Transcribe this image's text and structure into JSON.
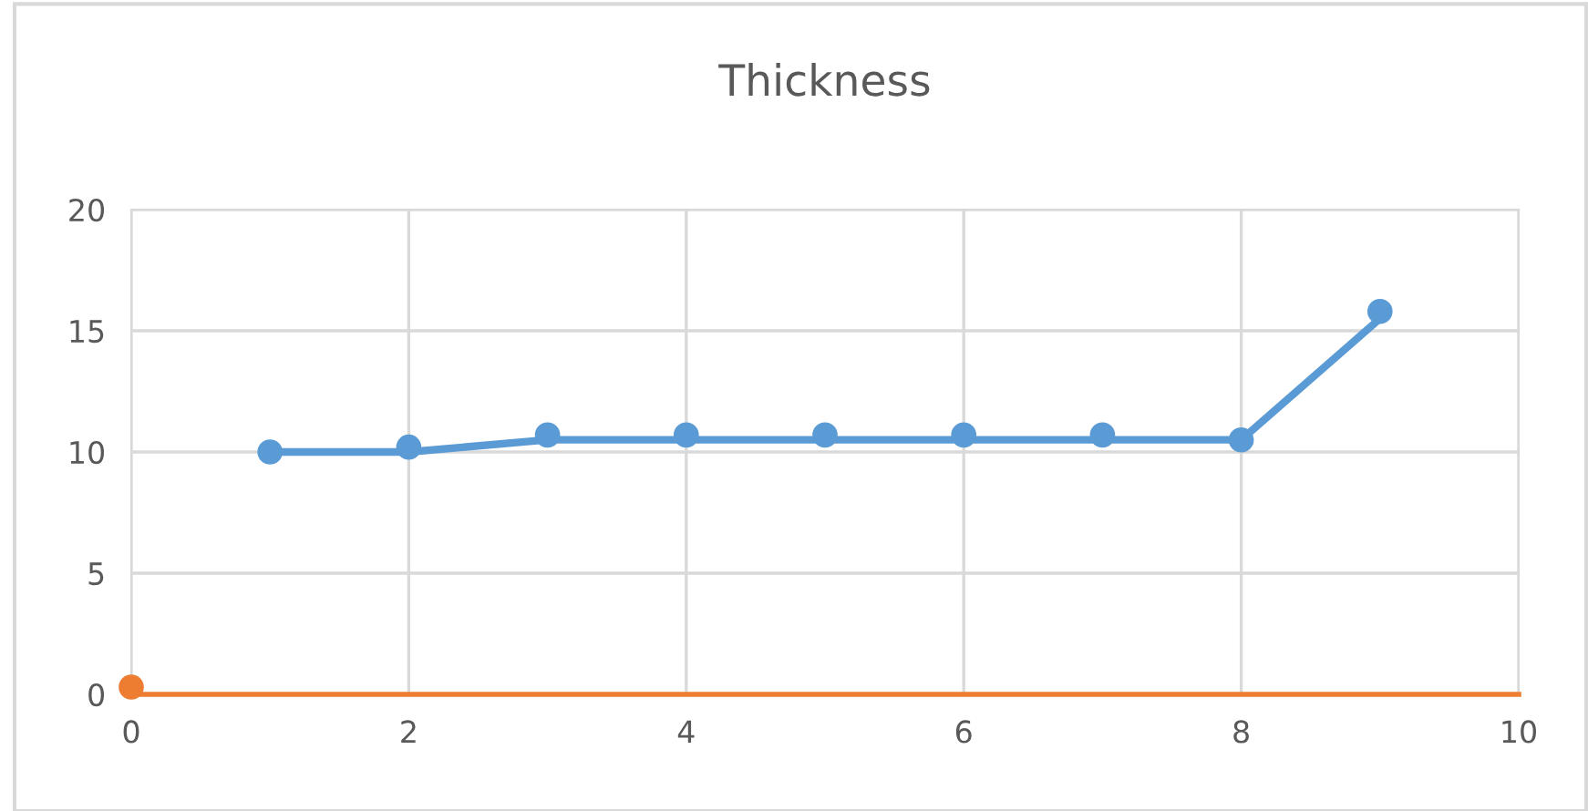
{
  "chart_data": {
    "type": "scatter",
    "title": "Thickness",
    "xlim": [
      0,
      10
    ],
    "xticks": [
      0,
      2,
      4,
      6,
      8,
      10
    ],
    "ylim": [
      0,
      20
    ],
    "yticks": [
      0,
      5,
      10,
      15,
      20
    ],
    "grid": true,
    "series": [
      {
        "type": "line",
        "color": "#5b9bd5",
        "x": [
          1,
          2,
          3,
          4,
          5,
          6,
          7,
          8,
          9
        ],
        "values": [
          10,
          10,
          10.5,
          10.5,
          10.5,
          10.5,
          10.5,
          10.5,
          15.5
        ],
        "marker": "none",
        "line_style": "solid"
      },
      {
        "color": "#5b9bd5",
        "x": [
          1,
          2,
          3,
          4,
          5,
          6,
          7,
          8,
          9
        ],
        "values": [
          10,
          10.2,
          10.7,
          10.7,
          10.7,
          10.7,
          10.7,
          10.5,
          15.8
        ],
        "marker": "circle"
      },
      {
        "type": "line",
        "color": "#ed7d31",
        "x": [
          0,
          10
        ],
        "values": [
          0,
          0
        ],
        "marker": "none",
        "line_style": "solid"
      },
      {
        "color": "#ed7d31",
        "x": [
          0
        ],
        "values": [
          0.3
        ],
        "marker": "circle"
      }
    ],
    "legend": false
  }
}
